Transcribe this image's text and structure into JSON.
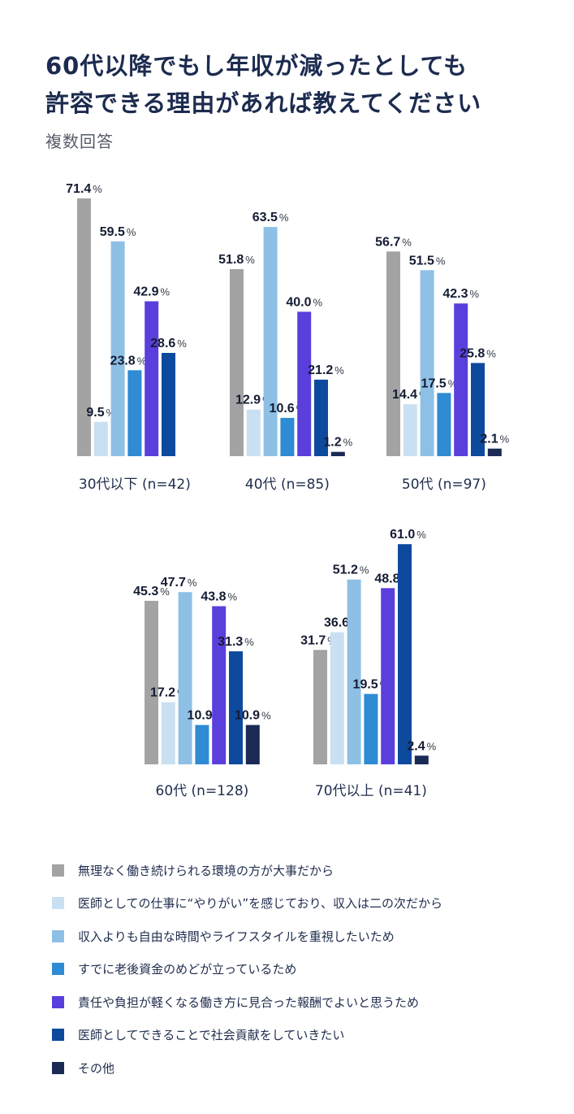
{
  "title_lines": [
    "60代以降でもし年収が減ったとしても",
    "許容できる理由があれば教えてください"
  ],
  "subtitle": "複数回答",
  "colors": [
    "#a3a3a3",
    "#c9e0f2",
    "#8ec0e6",
    "#2e8bd4",
    "#5a3fdc",
    "#0d4a9e",
    "#1b2a55"
  ],
  "chart_data": {
    "type": "bar",
    "unit": "%",
    "ylim": [
      0,
      100
    ],
    "series": [
      "無理なく働き続けられる環境の方が大事だから",
      "医師としての仕事に“やりがい”を感じており、収入は二の次だから",
      "収入よりも自由な時間やライフスタイルを重視したいため",
      "すでに老後資金のめどが立っているため",
      "責任や負担が軽くなる働き方に見合った報酬でよいと思うため",
      "医師としてできることで社会貢献をしていきたい",
      "その他"
    ],
    "groups": [
      {
        "label": "30代以下 (n=42)",
        "values": [
          71.4,
          9.5,
          59.5,
          23.8,
          42.9,
          28.6,
          null
        ],
        "labels": [
          "71.4",
          "9.5",
          "59.5",
          "23.8",
          "42.9",
          "28.6",
          null
        ]
      },
      {
        "label": "40代 (n=85)",
        "values": [
          51.8,
          12.9,
          63.5,
          10.6,
          40.0,
          21.2,
          1.2
        ],
        "labels": [
          "51.8",
          "12.9",
          "63.5",
          "10.6",
          "40.0",
          "21.2",
          "1.2"
        ]
      },
      {
        "label": "50代 (n=97)",
        "values": [
          56.7,
          14.4,
          51.5,
          17.5,
          42.3,
          25.8,
          2.1
        ],
        "labels": [
          "56.7",
          "14.4",
          "51.5",
          "17.5",
          "42.3",
          "25.8",
          "2.1"
        ]
      },
      {
        "label": "60代 (n=128)",
        "values": [
          45.3,
          17.2,
          47.7,
          10.9,
          43.8,
          31.3,
          10.9
        ],
        "labels": [
          "45.3",
          "17.2",
          "47.7",
          "10.9",
          "43.8",
          "31.3",
          "10.9"
        ]
      },
      {
        "label": "70代以上 (n=41)",
        "values": [
          31.7,
          36.6,
          51.2,
          19.5,
          48.8,
          61.0,
          2.4
        ],
        "labels": [
          "31.7",
          "36.6",
          "51.2",
          "19.5",
          "48.8",
          "61.0",
          "2.4"
        ]
      }
    ]
  }
}
